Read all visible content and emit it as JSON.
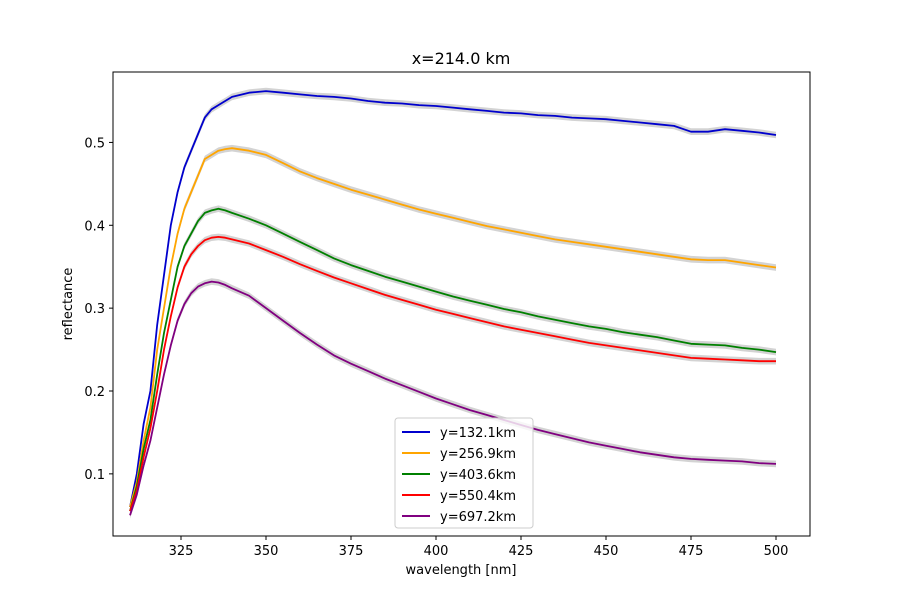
{
  "chart_data": {
    "type": "line",
    "title": "x=214.0 km",
    "xlabel": "wavelength [nm]",
    "ylabel": "reflectance",
    "xlim": [
      305,
      510
    ],
    "ylim": [
      0.025,
      0.585
    ],
    "xticks": [
      325,
      350,
      375,
      400,
      425,
      450,
      475,
      500
    ],
    "yticks": [
      0.1,
      0.2,
      0.3,
      0.4,
      0.5
    ],
    "ytick_labels": [
      "0.1",
      "0.2",
      "0.3",
      "0.4",
      "0.5"
    ],
    "grid": false,
    "legend_position": "lower-center",
    "uncertainty_band_color": "#d3d3d3",
    "series": [
      {
        "name": "y=132.1km",
        "color": "#0000cd",
        "x": [
          310,
          312,
          314,
          316,
          318,
          320,
          322,
          324,
          326,
          328,
          330,
          332,
          334,
          336,
          338,
          340,
          345,
          350,
          355,
          360,
          365,
          370,
          375,
          380,
          385,
          390,
          395,
          400,
          405,
          410,
          415,
          420,
          425,
          430,
          435,
          440,
          445,
          450,
          455,
          460,
          465,
          470,
          475,
          480,
          485,
          490,
          495,
          500
        ],
        "y": [
          0.06,
          0.1,
          0.16,
          0.2,
          0.28,
          0.34,
          0.4,
          0.44,
          0.47,
          0.49,
          0.51,
          0.53,
          0.54,
          0.545,
          0.55,
          0.555,
          0.56,
          0.562,
          0.56,
          0.558,
          0.556,
          0.555,
          0.553,
          0.55,
          0.548,
          0.547,
          0.545,
          0.544,
          0.542,
          0.54,
          0.538,
          0.536,
          0.535,
          0.533,
          0.532,
          0.53,
          0.529,
          0.528,
          0.526,
          0.524,
          0.522,
          0.52,
          0.513,
          0.513,
          0.516,
          0.514,
          0.512,
          0.509
        ]
      },
      {
        "name": "y=256.9km",
        "color": "#ffa500",
        "x": [
          310,
          312,
          314,
          316,
          318,
          320,
          322,
          324,
          326,
          328,
          330,
          332,
          334,
          336,
          338,
          340,
          345,
          350,
          355,
          360,
          365,
          370,
          375,
          380,
          385,
          390,
          395,
          400,
          405,
          410,
          415,
          420,
          425,
          430,
          435,
          440,
          445,
          450,
          455,
          460,
          465,
          470,
          475,
          480,
          485,
          490,
          495,
          500
        ],
        "y": [
          0.06,
          0.09,
          0.14,
          0.18,
          0.25,
          0.3,
          0.35,
          0.39,
          0.42,
          0.44,
          0.46,
          0.48,
          0.485,
          0.49,
          0.492,
          0.493,
          0.49,
          0.485,
          0.475,
          0.465,
          0.457,
          0.45,
          0.443,
          0.437,
          0.431,
          0.425,
          0.419,
          0.414,
          0.409,
          0.404,
          0.399,
          0.395,
          0.391,
          0.387,
          0.383,
          0.38,
          0.377,
          0.374,
          0.371,
          0.368,
          0.365,
          0.362,
          0.359,
          0.358,
          0.358,
          0.355,
          0.352,
          0.349
        ]
      },
      {
        "name": "y=403.6km",
        "color": "#008000",
        "x": [
          310,
          312,
          314,
          316,
          318,
          320,
          322,
          324,
          326,
          328,
          330,
          332,
          334,
          336,
          338,
          340,
          345,
          350,
          355,
          360,
          365,
          370,
          375,
          380,
          385,
          390,
          395,
          400,
          405,
          410,
          415,
          420,
          425,
          430,
          435,
          440,
          445,
          450,
          455,
          460,
          465,
          470,
          475,
          480,
          485,
          490,
          495,
          500
        ],
        "y": [
          0.055,
          0.085,
          0.13,
          0.165,
          0.22,
          0.27,
          0.31,
          0.35,
          0.375,
          0.39,
          0.405,
          0.415,
          0.418,
          0.42,
          0.418,
          0.415,
          0.408,
          0.4,
          0.39,
          0.38,
          0.37,
          0.36,
          0.352,
          0.345,
          0.338,
          0.332,
          0.326,
          0.32,
          0.314,
          0.309,
          0.304,
          0.299,
          0.295,
          0.29,
          0.286,
          0.282,
          0.278,
          0.275,
          0.271,
          0.268,
          0.265,
          0.261,
          0.257,
          0.256,
          0.255,
          0.252,
          0.25,
          0.247
        ]
      },
      {
        "name": "y=550.4km",
        "color": "#ff0000",
        "x": [
          310,
          312,
          314,
          316,
          318,
          320,
          322,
          324,
          326,
          328,
          330,
          332,
          334,
          336,
          338,
          340,
          345,
          350,
          355,
          360,
          365,
          370,
          375,
          380,
          385,
          390,
          395,
          400,
          405,
          410,
          415,
          420,
          425,
          430,
          435,
          440,
          445,
          450,
          455,
          460,
          465,
          470,
          475,
          480,
          485,
          490,
          495,
          500
        ],
        "y": [
          0.055,
          0.08,
          0.12,
          0.155,
          0.2,
          0.25,
          0.29,
          0.325,
          0.35,
          0.365,
          0.375,
          0.382,
          0.385,
          0.386,
          0.385,
          0.383,
          0.378,
          0.37,
          0.362,
          0.353,
          0.345,
          0.337,
          0.33,
          0.323,
          0.316,
          0.31,
          0.304,
          0.298,
          0.293,
          0.288,
          0.283,
          0.278,
          0.274,
          0.27,
          0.266,
          0.262,
          0.258,
          0.255,
          0.252,
          0.249,
          0.246,
          0.243,
          0.24,
          0.239,
          0.238,
          0.237,
          0.236,
          0.236
        ]
      },
      {
        "name": "y=697.2km",
        "color": "#800080",
        "x": [
          310,
          312,
          314,
          316,
          318,
          320,
          322,
          324,
          326,
          328,
          330,
          332,
          334,
          336,
          338,
          340,
          345,
          350,
          355,
          360,
          365,
          370,
          375,
          380,
          385,
          390,
          395,
          400,
          405,
          410,
          415,
          420,
          425,
          430,
          435,
          440,
          445,
          450,
          455,
          460,
          465,
          470,
          475,
          480,
          485,
          490,
          495,
          500
        ],
        "y": [
          0.05,
          0.075,
          0.11,
          0.14,
          0.18,
          0.22,
          0.255,
          0.285,
          0.305,
          0.318,
          0.326,
          0.33,
          0.332,
          0.331,
          0.328,
          0.324,
          0.315,
          0.3,
          0.285,
          0.27,
          0.256,
          0.243,
          0.233,
          0.224,
          0.215,
          0.207,
          0.199,
          0.191,
          0.184,
          0.177,
          0.171,
          0.165,
          0.159,
          0.153,
          0.148,
          0.143,
          0.138,
          0.134,
          0.13,
          0.126,
          0.123,
          0.12,
          0.118,
          0.117,
          0.116,
          0.115,
          0.113,
          0.112
        ]
      }
    ]
  }
}
